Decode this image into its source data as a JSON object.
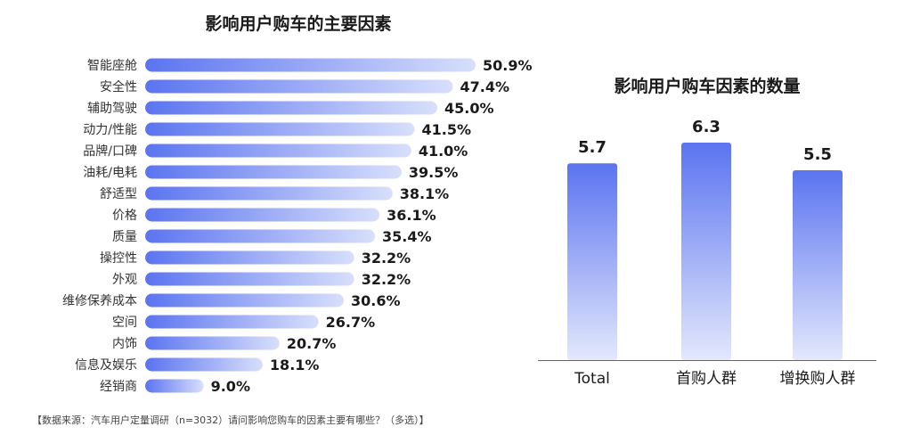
{
  "footnote": "【数据来源：汽车用户定量调研（n=3032）请问影响您购车的因素主要有哪些？（多选）】",
  "chart_data": [
    {
      "type": "bar",
      "orientation": "horizontal",
      "title": "影响用户购车的主要因素",
      "categories": [
        "智能座舱",
        "安全性",
        "辅助驾驶",
        "动力/性能",
        "品牌/口碑",
        "油耗/电耗",
        "舒适型",
        "价格",
        "质量",
        "操控性",
        "外观",
        "维修保养成本",
        "空间",
        "内饰",
        "信息及娱乐",
        "经销商"
      ],
      "values": [
        50.9,
        47.4,
        45.0,
        41.5,
        41.0,
        39.5,
        38.1,
        36.1,
        35.4,
        32.2,
        32.2,
        30.6,
        26.7,
        20.7,
        18.1,
        9.0
      ],
      "value_labels": [
        "50.9%",
        "47.4%",
        "45.0%",
        "41.5%",
        "41.0%",
        "39.5%",
        "38.1%",
        "36.1%",
        "35.4%",
        "32.2%",
        "32.2%",
        "30.6%",
        "26.7%",
        "20.7%",
        "18.1%",
        "9.0%"
      ],
      "xlim": [
        0,
        50.9
      ],
      "grid": false,
      "colors": {
        "bar_start": "#5b74f0",
        "bar_end": "#d8dffb"
      }
    },
    {
      "type": "bar",
      "orientation": "vertical",
      "title": "影响用户购车因素的数量",
      "categories": [
        "Total",
        "首购人群",
        "增换购人群"
      ],
      "values": [
        5.7,
        6.3,
        5.5
      ],
      "value_labels": [
        "5.7",
        "6.3",
        "5.5"
      ],
      "ylim": [
        0,
        6.3
      ],
      "grid": false,
      "colors": {
        "bar_top": "#5b74f0",
        "bar_bottom": "#e3e8fc",
        "axis": "#666666"
      }
    }
  ]
}
